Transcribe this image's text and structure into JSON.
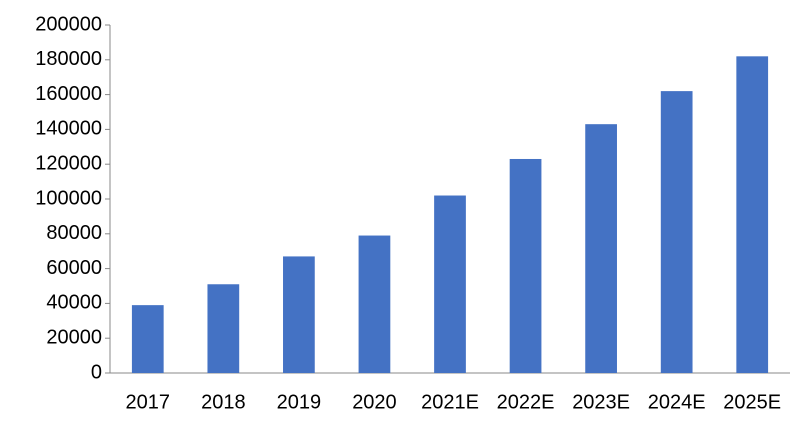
{
  "chart_data": {
    "type": "bar",
    "categories": [
      "2017",
      "2018",
      "2019",
      "2020",
      "2021E",
      "2022E",
      "2023E",
      "2024E",
      "2025E"
    ],
    "values": [
      39000,
      51000,
      67000,
      79000,
      102000,
      123000,
      143000,
      162000,
      182000
    ],
    "color": "#4472c4",
    "ylim": [
      0,
      200000
    ],
    "yticks": [
      0,
      20000,
      40000,
      60000,
      80000,
      100000,
      120000,
      140000,
      160000,
      180000,
      200000
    ],
    "grid": false
  }
}
